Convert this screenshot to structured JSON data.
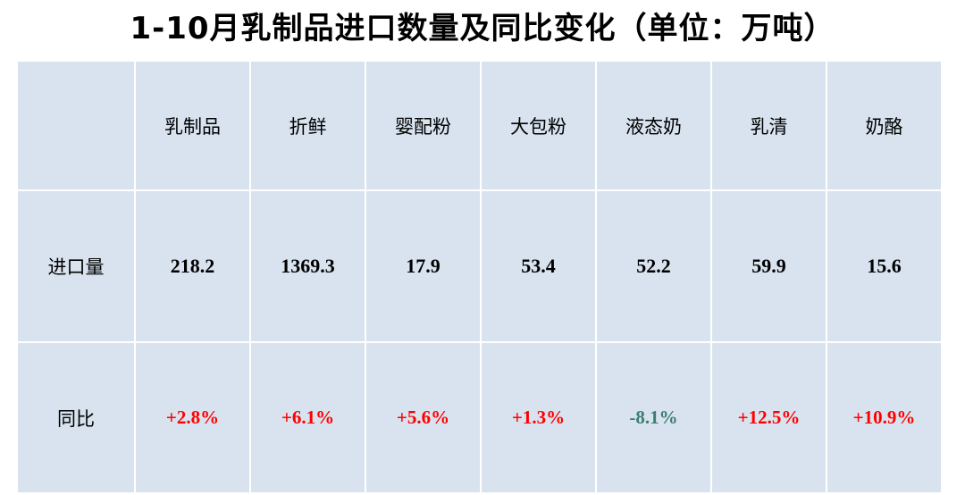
{
  "title": "1-10月乳制品进口数量及同比变化（单位：万吨）",
  "columns": [
    "乳制品",
    "折鲜",
    "婴配粉",
    "大包粉",
    "液态奶",
    "乳清",
    "奶酪"
  ],
  "rows": [
    {
      "label": "进口量",
      "values": [
        "218.2",
        "1369.3",
        "17.9",
        "53.4",
        "52.2",
        "59.9",
        "15.6"
      ]
    },
    {
      "label": "同比",
      "values": [
        "+2.8%",
        "+6.1%",
        "+5.6%",
        "+1.3%",
        "-8.1%",
        "+12.5%",
        "+10.9%"
      ]
    }
  ],
  "colors": {
    "positive": "#ff0000",
    "negative": "#3a7f6f",
    "cell_bg": "#d8e3ef"
  }
}
